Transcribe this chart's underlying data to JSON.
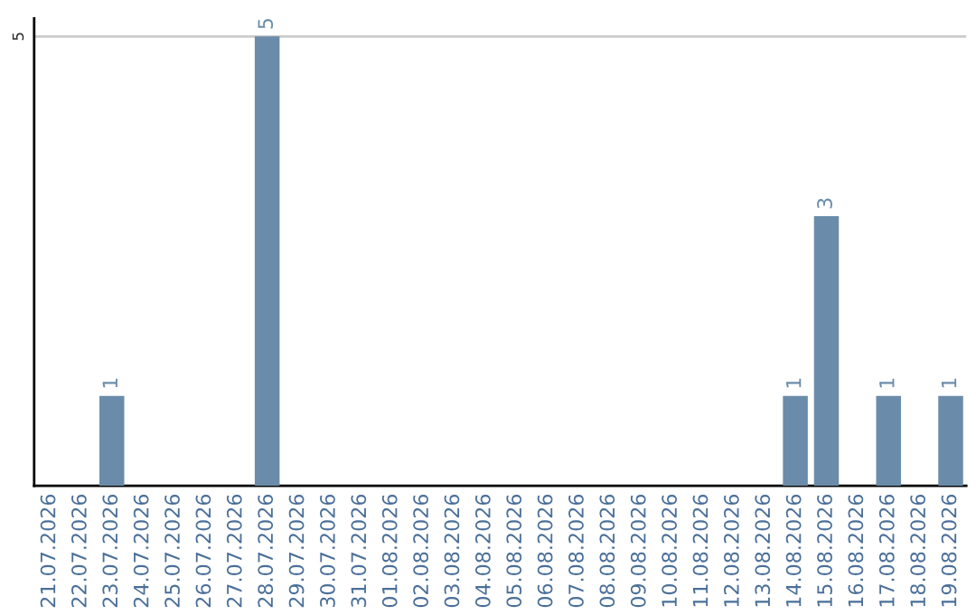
{
  "chart_data": {
    "type": "bar",
    "categories": [
      "21.07.2026",
      "22.07.2026",
      "23.07.2026",
      "24.07.2026",
      "25.07.2026",
      "26.07.2026",
      "27.07.2026",
      "28.07.2026",
      "29.07.2026",
      "30.07.2026",
      "31.07.2026",
      "01.08.2026",
      "02.08.2026",
      "03.08.2026",
      "04.08.2026",
      "05.08.2026",
      "06.08.2026",
      "07.08.2026",
      "08.08.2026",
      "09.08.2026",
      "10.08.2026",
      "11.08.2026",
      "12.08.2026",
      "13.08.2026",
      "14.08.2026",
      "15.08.2026",
      "16.08.2026",
      "17.08.2026",
      "18.08.2026",
      "19.08.2026"
    ],
    "values": [
      0,
      0,
      1,
      0,
      0,
      0,
      0,
      5,
      0,
      0,
      0,
      0,
      0,
      0,
      0,
      0,
      0,
      0,
      0,
      0,
      0,
      0,
      0,
      0,
      1,
      3,
      0,
      1,
      0,
      1
    ],
    "value_labels": [
      null,
      null,
      "1",
      null,
      null,
      null,
      null,
      "5",
      null,
      null,
      null,
      null,
      null,
      null,
      null,
      null,
      null,
      null,
      null,
      null,
      null,
      null,
      null,
      null,
      "1",
      "3",
      null,
      "1",
      null,
      "1"
    ],
    "color": "#6a8caa",
    "ylim": [
      0,
      5.2
    ],
    "yticks": [
      5
    ],
    "grid": "y",
    "legend": false
  }
}
